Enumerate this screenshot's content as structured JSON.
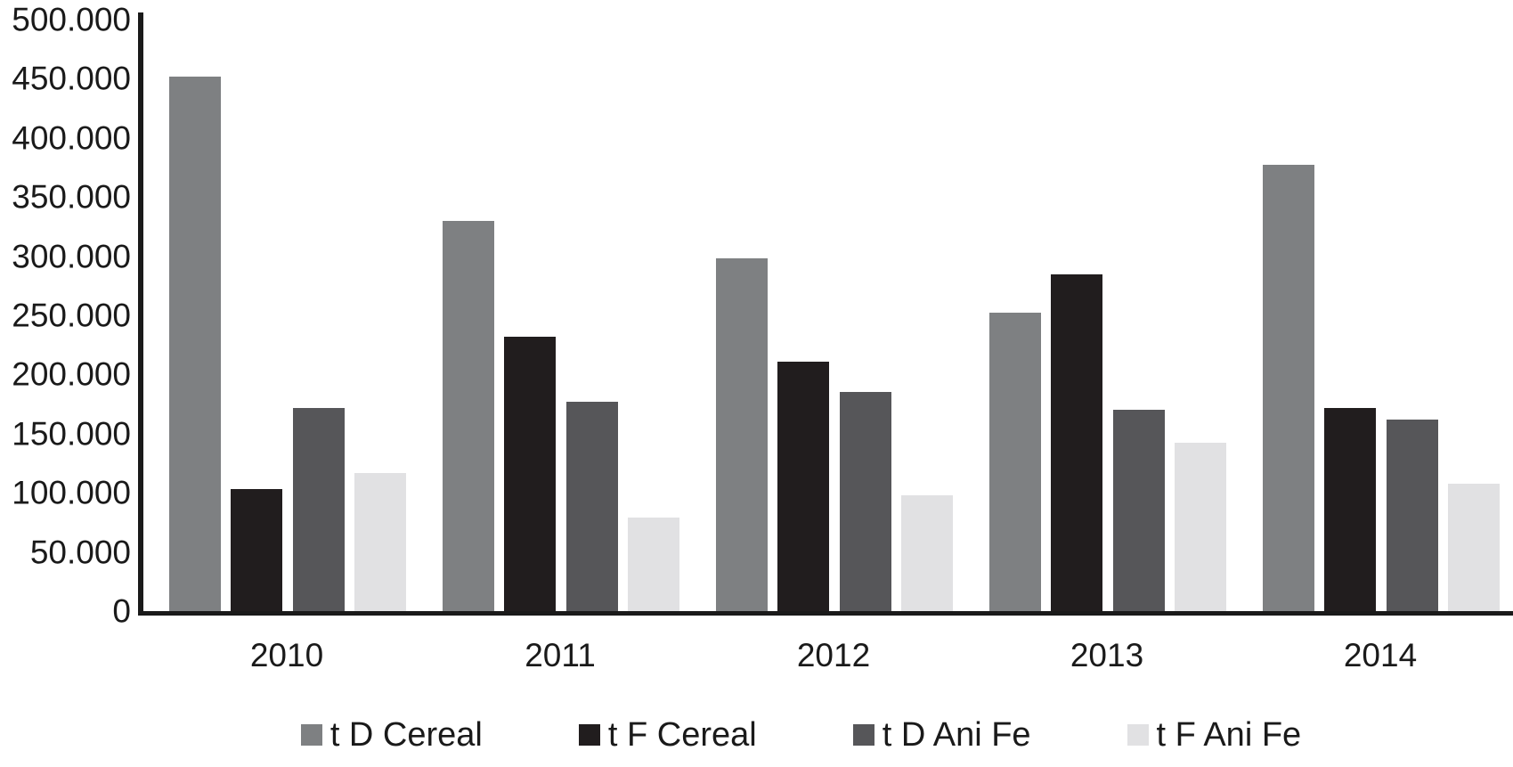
{
  "chart_data": {
    "type": "bar",
    "title": "",
    "xlabel": "",
    "ylabel": "",
    "categories": [
      "2010",
      "2011",
      "2012",
      "2013",
      "2014"
    ],
    "series": [
      {
        "name": "t D Cereal",
        "color": "#7e8082",
        "values": [
          452000,
          330000,
          298000,
          252000,
          377000
        ]
      },
      {
        "name": "t F Cereal",
        "color": "#211d1e",
        "values": [
          103000,
          232000,
          211000,
          285000,
          172000
        ]
      },
      {
        "name": "t D Ani Fe",
        "color": "#565659",
        "values": [
          172000,
          177000,
          185000,
          170000,
          162000
        ]
      },
      {
        "name": "t F Ani Fe",
        "color": "#e1e1e3",
        "values": [
          117000,
          79000,
          98000,
          142000,
          108000
        ]
      }
    ],
    "ylim": [
      0,
      500000
    ],
    "y_tick_step": 50000,
    "y_tick_labels": [
      "500.000",
      "450.000",
      "400.000",
      "350.000",
      "300.000",
      "250.000",
      "200.000",
      "150.000",
      "100.000",
      "50.000",
      "0"
    ],
    "grid": false,
    "legend_position": "bottom",
    "axis_color": "#1a1a1a",
    "text_color": "#1a1a1a",
    "background": "#ffffff"
  }
}
